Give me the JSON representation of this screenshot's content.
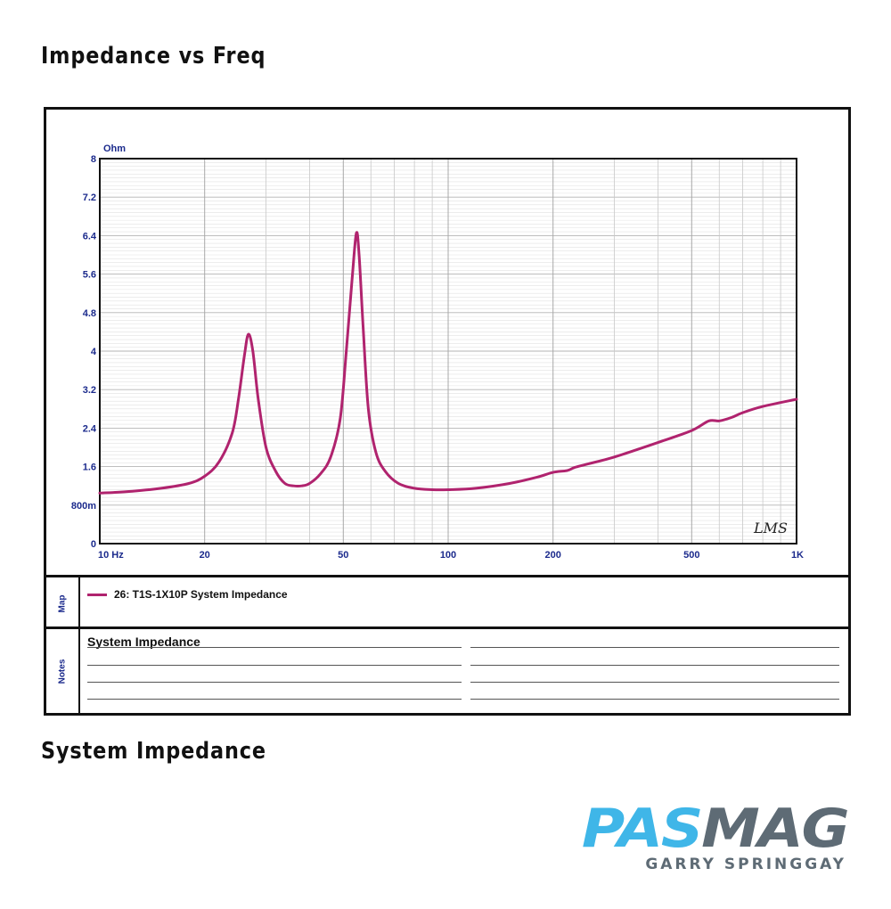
{
  "page": {
    "title": "Impedance vs Freq",
    "subtitle": "System Impedance"
  },
  "chart_data": {
    "type": "line",
    "title": "",
    "xlabel": "",
    "ylabel": "Ohm",
    "xscale": "log",
    "xlim": [
      10,
      1000
    ],
    "ylim": [
      0,
      8
    ],
    "grid": true,
    "legend_position": "below",
    "x_tick_labels": [
      {
        "value": 10,
        "label": "10 Hz"
      },
      {
        "value": 20,
        "label": "20"
      },
      {
        "value": 50,
        "label": "50"
      },
      {
        "value": 100,
        "label": "100"
      },
      {
        "value": 200,
        "label": "200"
      },
      {
        "value": 500,
        "label": "500"
      },
      {
        "value": 1000,
        "label": "1K"
      }
    ],
    "y_tick_labels": [
      {
        "value": 0,
        "label": "0"
      },
      {
        "value": 0.8,
        "label": "800m"
      },
      {
        "value": 1.6,
        "label": "1.6"
      },
      {
        "value": 2.4,
        "label": "2.4"
      },
      {
        "value": 3.2,
        "label": "3.2"
      },
      {
        "value": 4,
        "label": "4"
      },
      {
        "value": 4.8,
        "label": "4.8"
      },
      {
        "value": 5.6,
        "label": "5.6"
      },
      {
        "value": 6.4,
        "label": "6.4"
      },
      {
        "value": 7.2,
        "label": "7.2"
      },
      {
        "value": 8,
        "label": "8"
      }
    ],
    "watermark": "LMS",
    "series": [
      {
        "name": "26: T1S-1X10P System Impedance",
        "color": "#b0236e",
        "x": [
          10,
          12,
          15,
          18,
          20,
          22,
          24,
          25,
          26,
          26.7,
          27.5,
          28.5,
          30,
          32,
          34,
          36,
          38,
          40,
          43,
          46,
          49,
          51,
          53,
          54.5,
          55.5,
          57,
          59,
          62,
          66,
          72,
          80,
          90,
          100,
          120,
          150,
          180,
          200,
          220,
          230,
          250,
          300,
          400,
          500,
          560,
          600,
          650,
          700,
          800,
          1000
        ],
        "y": [
          1.05,
          1.08,
          1.15,
          1.25,
          1.4,
          1.7,
          2.3,
          3.0,
          3.9,
          4.35,
          4.0,
          3.0,
          2.0,
          1.5,
          1.25,
          1.2,
          1.2,
          1.25,
          1.45,
          1.8,
          2.6,
          4.0,
          5.5,
          6.45,
          6.0,
          4.5,
          2.8,
          1.9,
          1.5,
          1.25,
          1.15,
          1.12,
          1.12,
          1.15,
          1.25,
          1.38,
          1.48,
          1.52,
          1.58,
          1.65,
          1.8,
          2.1,
          2.35,
          2.55,
          2.55,
          2.62,
          2.72,
          2.85,
          3.0
        ]
      }
    ]
  },
  "map_panel": {
    "label": "Map",
    "legend_entry": "26: T1S-1X10P System Impedance"
  },
  "notes_panel": {
    "label": "Notes",
    "title": "System Impedance"
  },
  "branding": {
    "logo_part1": "PAS",
    "logo_part2": "MAG",
    "credit": "GARRY SPRINGGAY"
  }
}
